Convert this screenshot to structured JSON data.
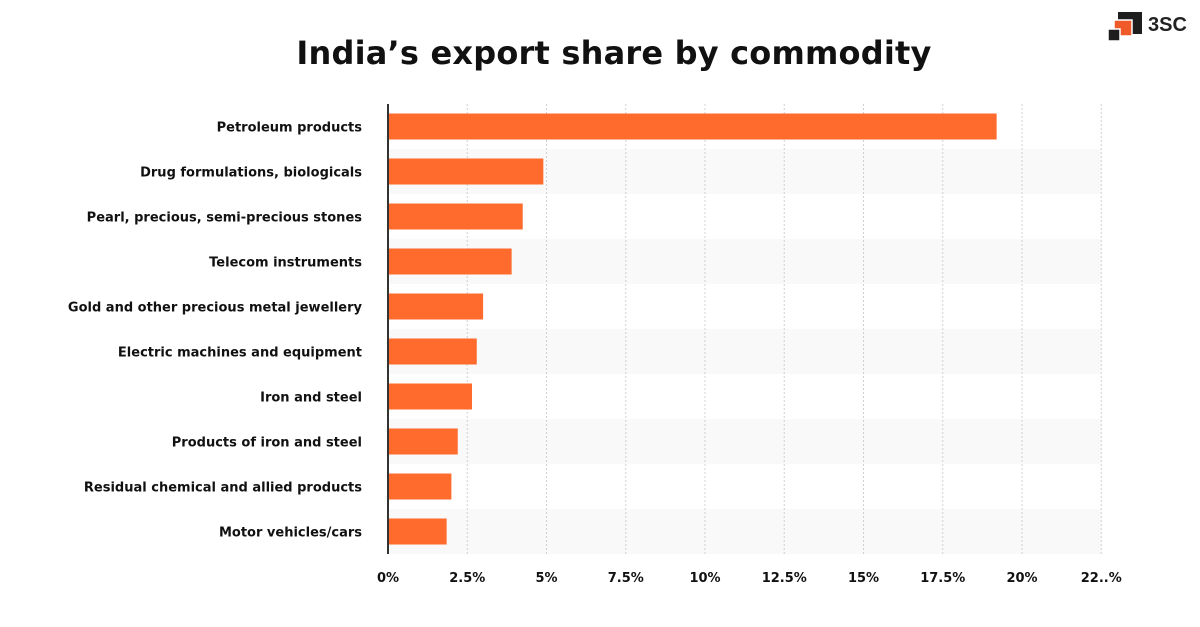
{
  "header": {
    "title": "India’s export share by commodity",
    "logo_text": "3SC"
  },
  "colors": {
    "bar": "#ff6b2c",
    "band": "#f9f9f9",
    "grid": "#d0d0d0",
    "logo_dark": "#1e1e1e",
    "logo_accent": "#f05a28"
  },
  "chart_data": {
    "type": "bar",
    "orientation": "horizontal",
    "title": "India’s export share by commodity",
    "categories": [
      "Petroleum products",
      "Drug formulations, biologicals",
      "Pearl, precious, semi-precious stones",
      "Telecom instruments",
      "Gold and other precious metal jewellery",
      "Electric machines and equipment",
      "Iron and steel",
      "Products of iron and steel",
      "Residual chemical and allied products",
      "Motor vehicles/cars"
    ],
    "values": [
      19.2,
      4.9,
      4.25,
      3.9,
      3.0,
      2.8,
      2.65,
      2.2,
      2.0,
      1.85
    ],
    "unit": "%",
    "xlim": [
      0,
      22.5
    ],
    "ticks": [
      0,
      2.5,
      5,
      7.5,
      10,
      12.5,
      15,
      17.5,
      20,
      22.5
    ],
    "tick_labels": [
      "0%",
      "2.5%",
      "5%",
      "7.5%",
      "10%",
      "12.5%",
      "15%",
      "17.5%",
      "20%",
      "22..%"
    ],
    "grid": "vertical dotted",
    "legend": "none"
  }
}
